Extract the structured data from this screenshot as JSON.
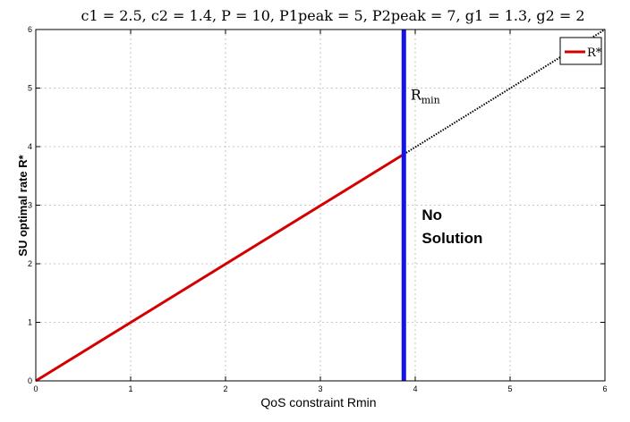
{
  "chart_data": {
    "type": "line",
    "title": {
      "c1": "c1 = 2.5, ",
      "c2": "c2 = 1.4, ",
      "pbar": "P = 10, ",
      "p1": "P1peak = 5, ",
      "p2": "P2peak = 7, ",
      "g1": "g1 = 1.3, ",
      "g2": "g2 = 2"
    },
    "xlabel": "QoS constraint Rmin",
    "ylabel": "SU optimal rate R*",
    "xlim": [
      0,
      6
    ],
    "ylim": [
      0,
      6
    ],
    "xticks": [
      "0",
      "1",
      "2",
      "3",
      "4",
      "5",
      "6"
    ],
    "yticks": [
      "0",
      "1",
      "2",
      "3",
      "4",
      "5",
      "6"
    ],
    "grid": true,
    "legend": {
      "position": "top-right",
      "entries": [
        {
          "name": "R*",
          "color": "#d40000"
        }
      ]
    },
    "series": [
      {
        "name": "R*",
        "style": "solid",
        "color": "#d40000",
        "x": [
          0,
          3.88
        ],
        "y": [
          0,
          3.87
        ]
      },
      {
        "style": "dotted",
        "color": "#000000",
        "x": [
          3.88,
          6
        ],
        "y": [
          3.87,
          6
        ]
      },
      {
        "style": "vertical",
        "color": "#1414e6",
        "x": [
          3.88,
          3.88
        ],
        "y": [
          0,
          6
        ]
      }
    ],
    "annotations": [
      {
        "text_main": "R",
        "text_sub": "min",
        "x": 3.95,
        "y": 4.8
      },
      {
        "text": "No",
        "x": 4.07,
        "y": 2.75
      },
      {
        "text": "Solution",
        "x": 4.07,
        "y": 2.35
      }
    ]
  }
}
